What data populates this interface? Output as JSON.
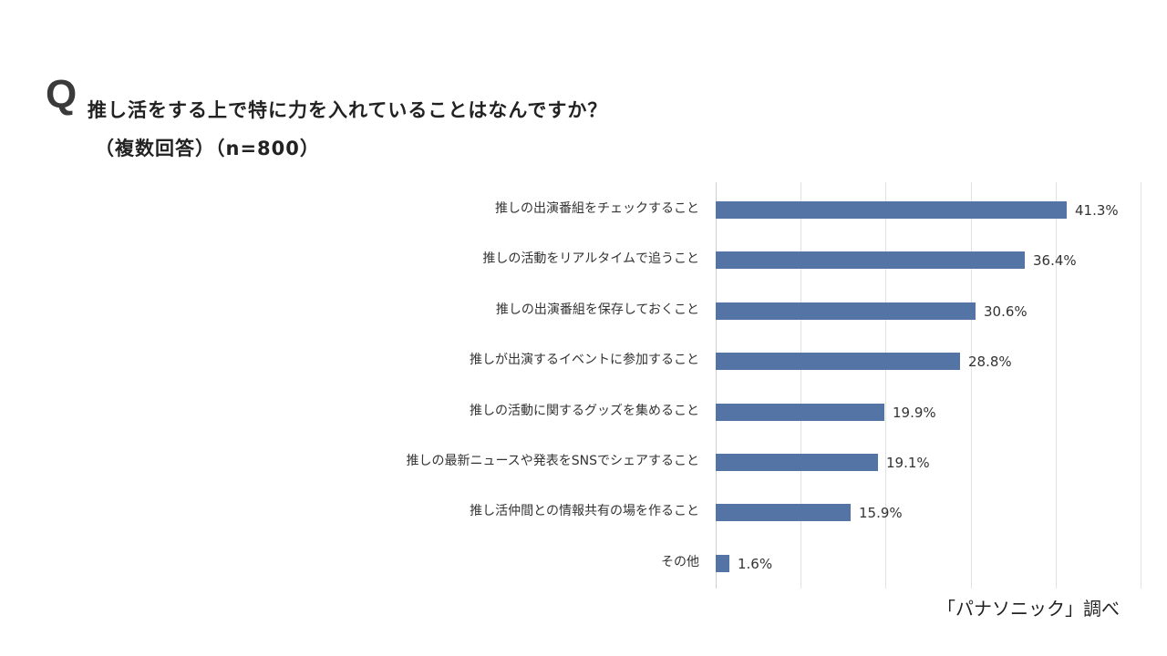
{
  "header": {
    "q_mark": "Q",
    "title": "推し活をする上で特に力を入れていることはなんですか？",
    "subtitle": "（複数回答）（n=800）"
  },
  "source": "「パナソニック」調べ",
  "colors": {
    "bar": "#5574a6",
    "gridline": "#e2e2e2",
    "text": "#333333"
  },
  "chart_data": {
    "type": "bar",
    "orientation": "horizontal",
    "title": "推し活をする上で特に力を入れていることはなんですか？",
    "subtitle": "（複数回答）（n=800）",
    "categories": [
      "推しの出演番組をチェックすること",
      "推しの活動をリアルタイムで追うこと",
      "推しの出演番組を保存しておくこと",
      "推しが出演するイベントに参加すること",
      "推しの活動に関するグッズを集めること",
      "推しの最新ニュースや発表をSNSでシェアすること",
      "推し活仲間との情報共有の場を作ること",
      "その他"
    ],
    "values": [
      41.3,
      36.4,
      30.6,
      28.8,
      19.9,
      19.1,
      15.9,
      1.6
    ],
    "value_labels": [
      "41.3%",
      "36.4%",
      "30.6%",
      "28.8%",
      "19.9%",
      "19.1%",
      "15.9%",
      "1.6%"
    ],
    "unit": "%",
    "xlabel": "",
    "ylabel": "",
    "xlim": [
      0,
      50
    ],
    "x_gridlines": [
      0,
      10,
      20,
      30,
      40,
      50
    ],
    "grid": true,
    "tick_labels_shown": false,
    "legend": "none",
    "source": "「パナソニック」調べ"
  }
}
